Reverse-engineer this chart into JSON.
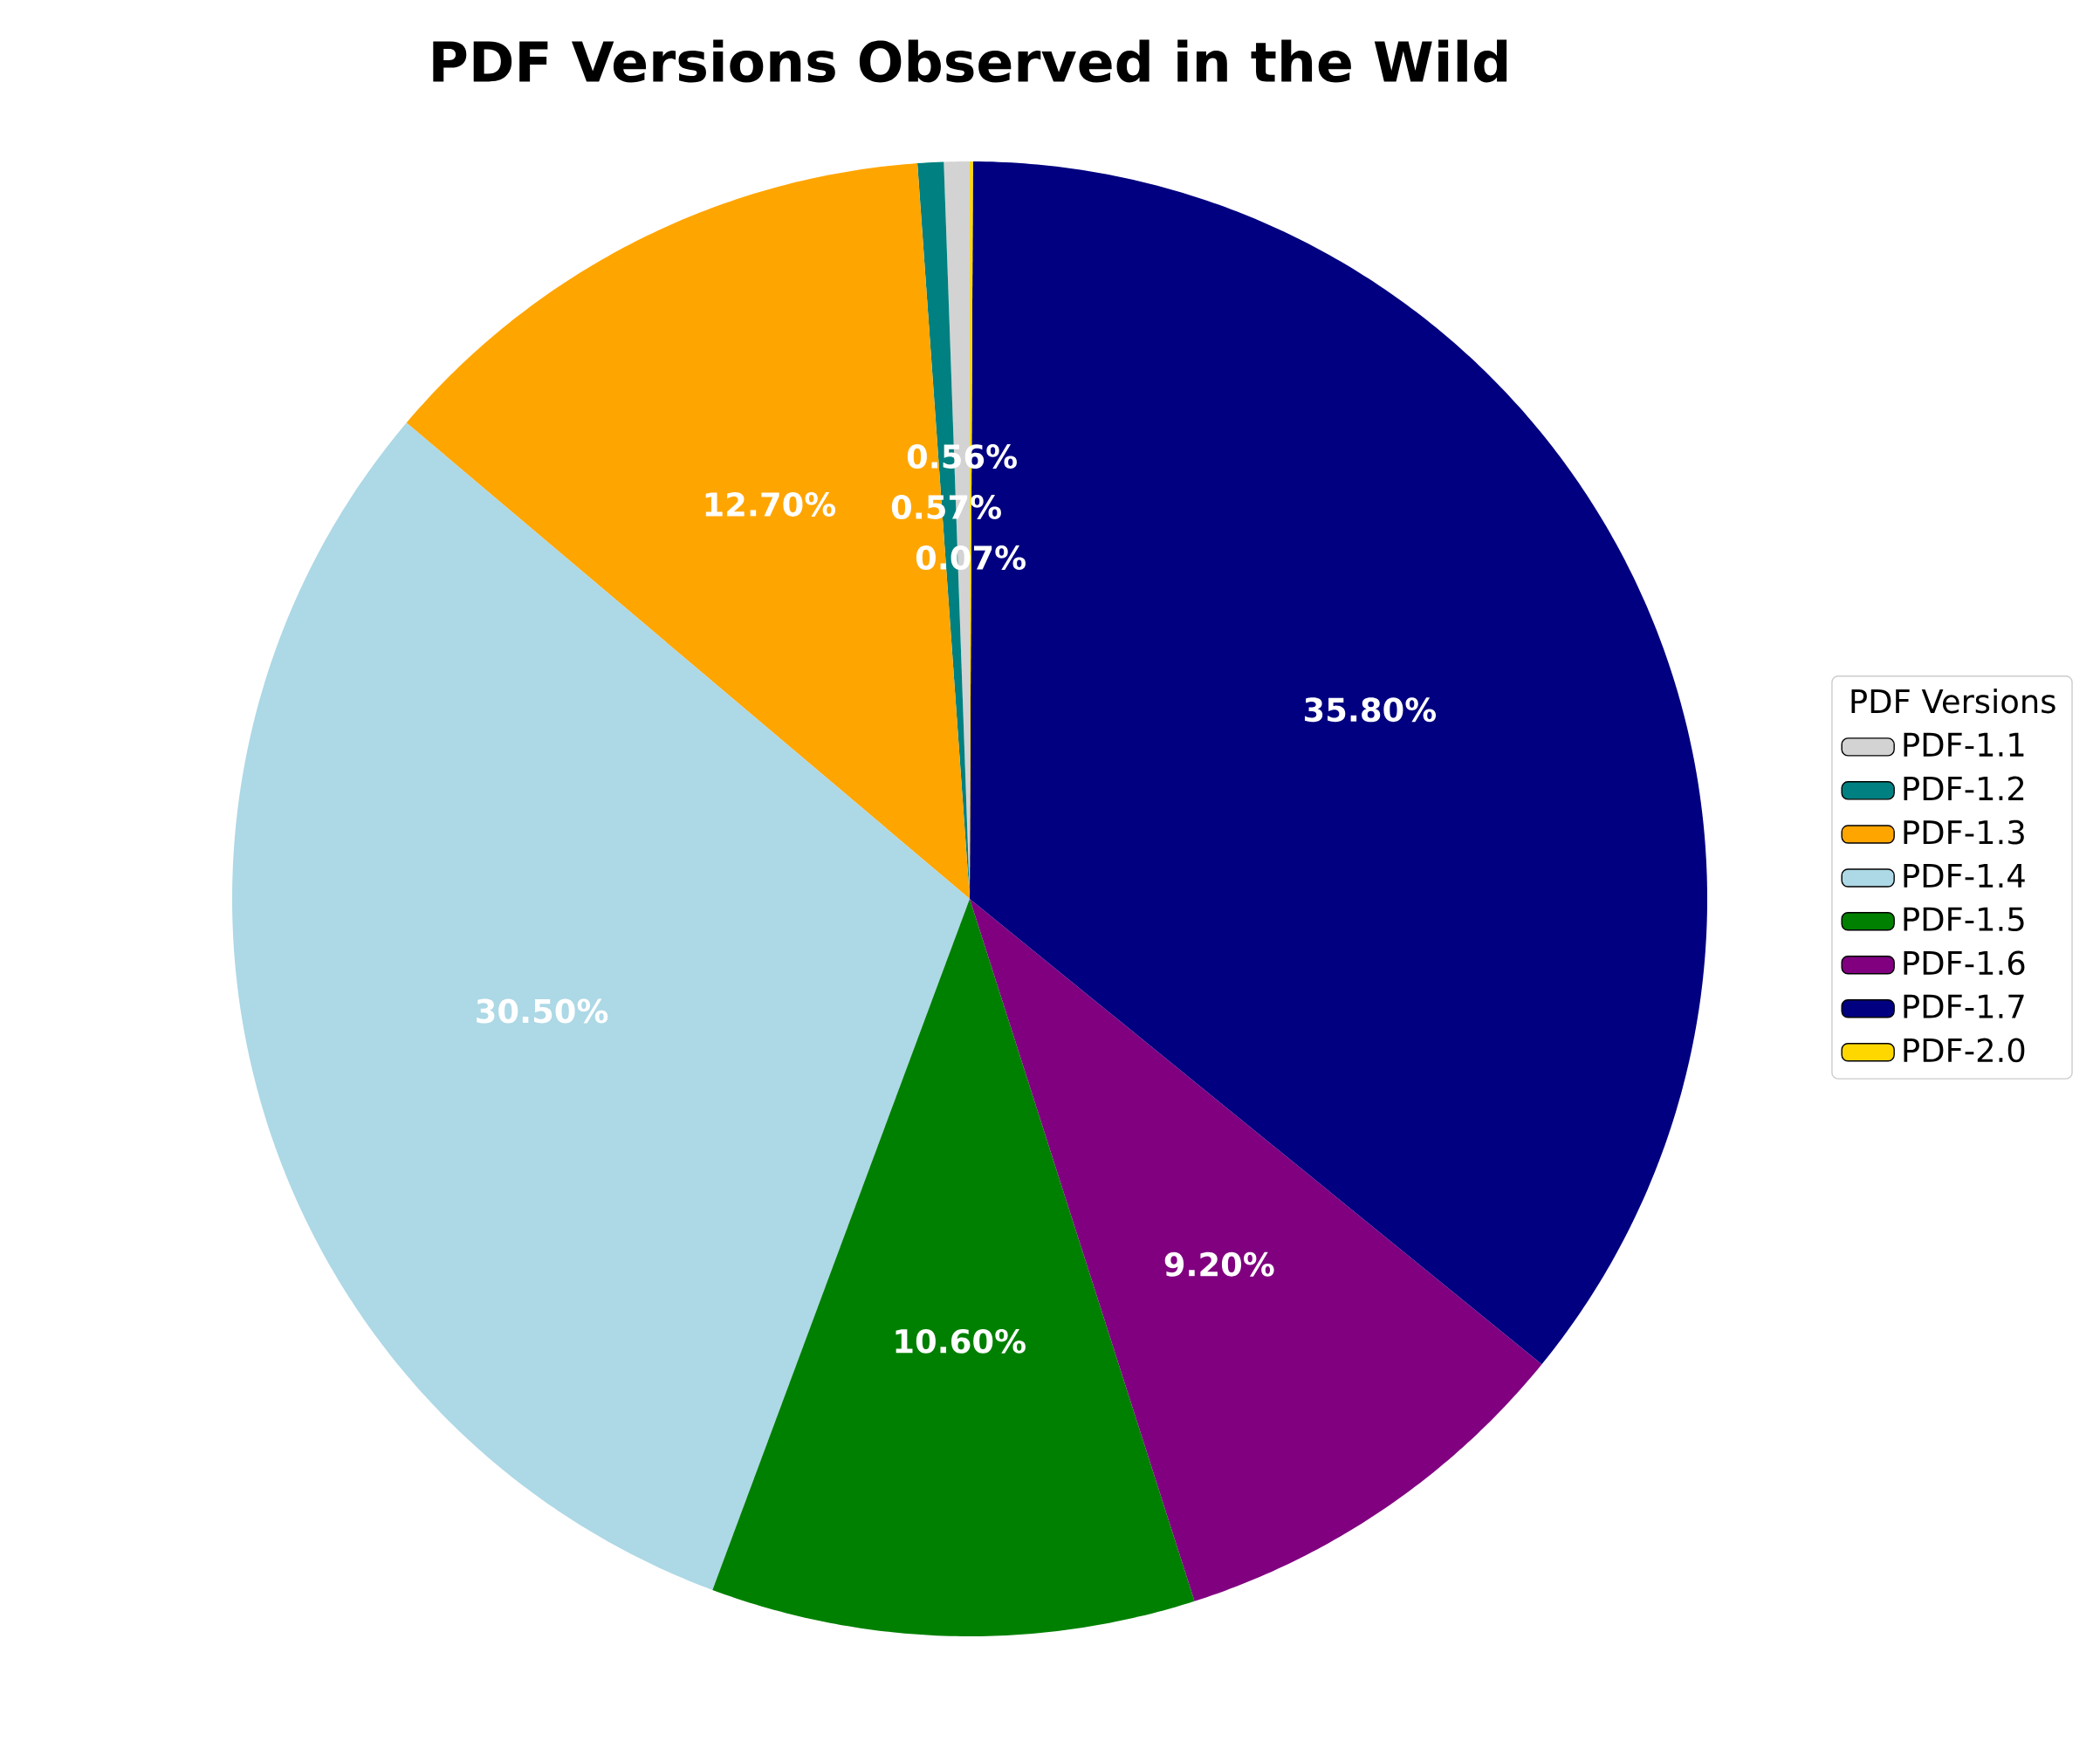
{
  "chart_data": {
    "type": "pie",
    "title": "PDF Versions Observed in the Wild",
    "legend_title": "PDF Versions",
    "legend": "right",
    "categories": [
      "PDF-1.1",
      "PDF-1.2",
      "PDF-1.3",
      "PDF-1.4",
      "PDF-1.5",
      "PDF-1.6",
      "PDF-1.7",
      "PDF-2.0"
    ],
    "values": [
      0.56,
      0.57,
      12.7,
      30.5,
      10.6,
      9.2,
      35.8,
      0.07
    ],
    "value_labels": [
      "0.56%",
      "0.57%",
      "12.70%",
      "30.50%",
      "10.60%",
      "9.20%",
      "35.80%",
      "0.07%"
    ],
    "colors": [
      "#d3d3d3",
      "#008080",
      "#ffa500",
      "#add8e6",
      "#008000",
      "#800080",
      "#000080",
      "#ffd700"
    ]
  }
}
